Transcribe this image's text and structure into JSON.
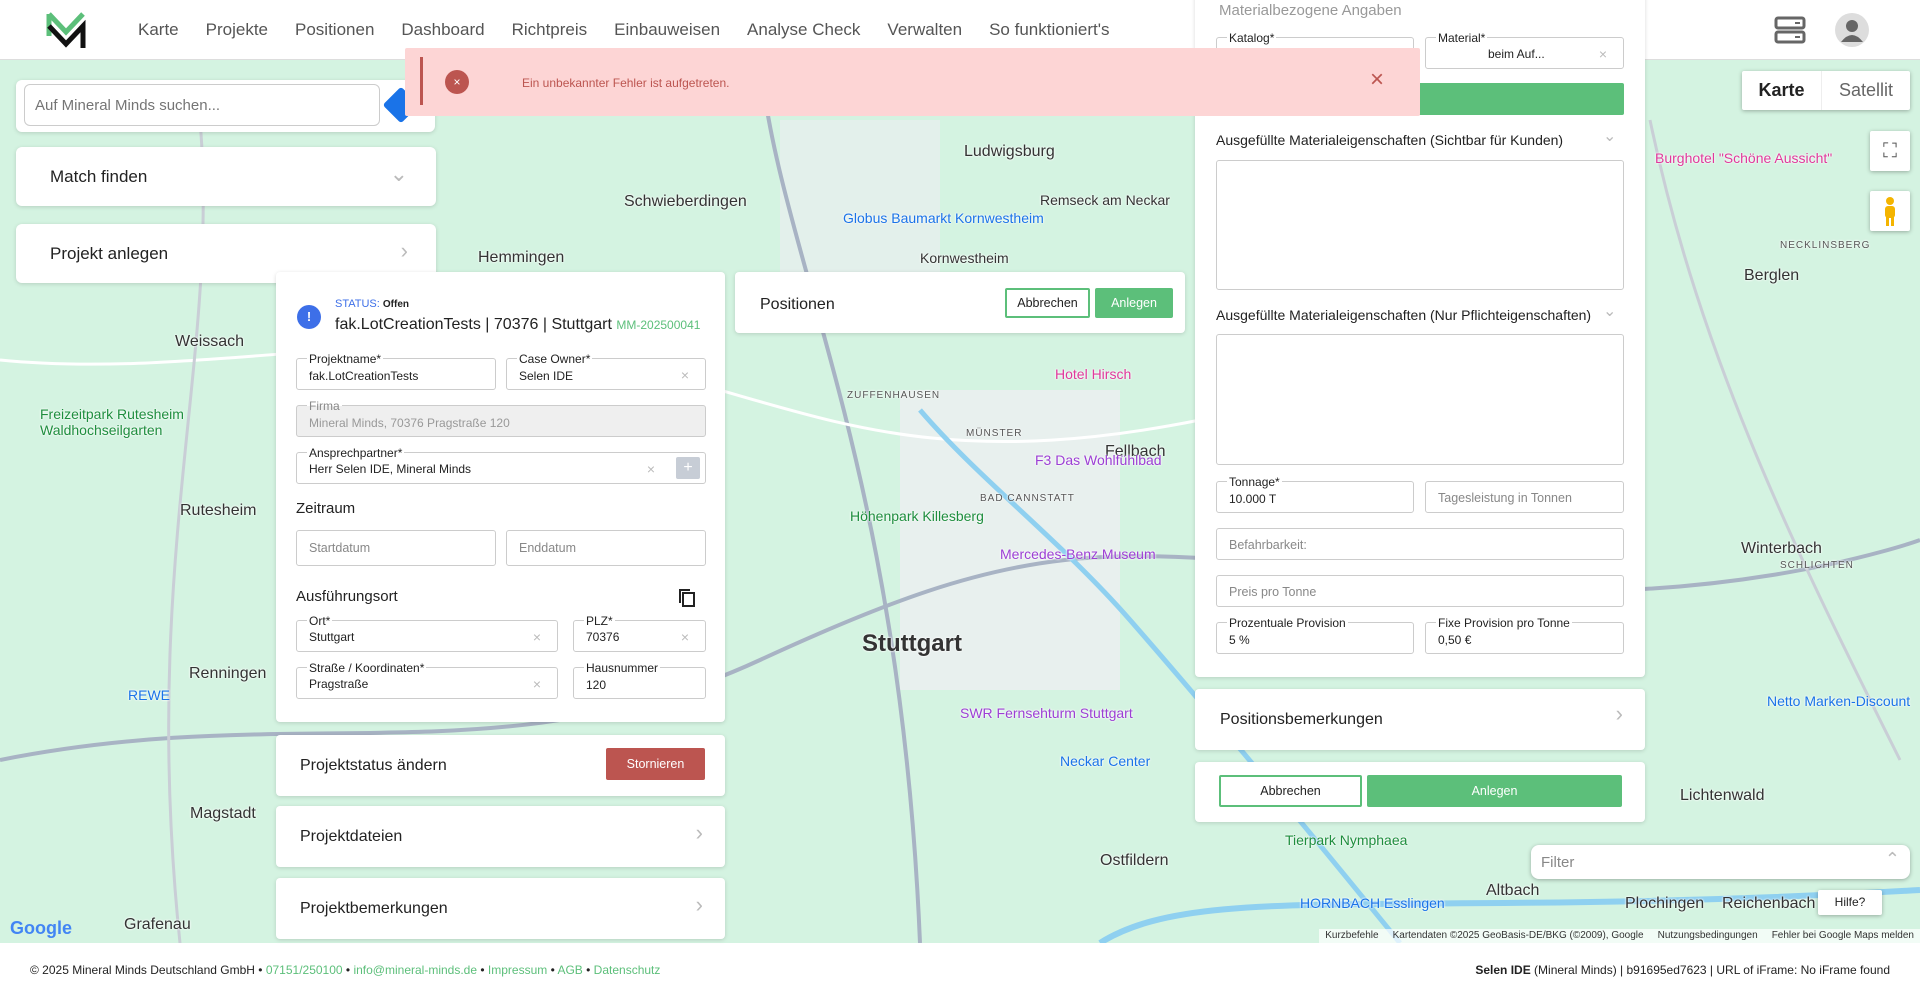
{
  "header": {
    "logo": "MM",
    "nav": [
      "Karte",
      "Projekte",
      "Positionen",
      "Dashboard",
      "Richtpreis",
      "Einbauweisen",
      "Analyse Check",
      "Verwalten",
      "So funktioniert's"
    ],
    "icons": [
      "server-icon",
      "avatar-icon"
    ]
  },
  "error": {
    "message": "Ein unbekannter Fehler ist aufgetreten.",
    "icon": "error-circle-icon",
    "close": "×"
  },
  "search": {
    "placeholder": "Auf Mineral Minds suchen..."
  },
  "left": {
    "match": "Match finden",
    "create": "Projekt anlegen"
  },
  "project": {
    "status_label": "STATUS:",
    "status": "Offen",
    "title": "fak.LotCreationTests | 70376 | Stuttgart",
    "code": "MM-202500041",
    "projektname_label": "Projektname*",
    "projektname": "fak.LotCreationTests",
    "owner_label": "Case Owner*",
    "owner": "Selen IDE",
    "firma_label": "Firma",
    "firma": "Mineral Minds, 70376 Pragstraße 120",
    "ansprech_label": "Ansprechpartner*",
    "ansprech": "Herr Selen IDE, Mineral Minds",
    "zeitraum": "Zeitraum",
    "start_ph": "Startdatum",
    "end_ph": "Enddatum",
    "ort_section": "Ausführungsort",
    "ort_label": "Ort*",
    "ort": "Stuttgart",
    "plz_label": "PLZ*",
    "plz": "70376",
    "strasse_label": "Straße / Koordinaten*",
    "strasse": "Pragstraße",
    "hnr_label": "Hausnummer",
    "hnr": "120"
  },
  "status_card": {
    "title": "Projektstatus ändern",
    "button": "Stornieren"
  },
  "files_card": {
    "title": "Projektdateien"
  },
  "remarks_card": {
    "title": "Projektbemerkungen"
  },
  "positions": {
    "title": "Positionen",
    "cancel": "Abbrechen",
    "create": "Anlegen"
  },
  "position_form": {
    "section": "Materialbezogene Angaben",
    "katalog_label": "Katalog*",
    "material_label": "Material*",
    "material": "beim Auf...",
    "props_visible": "Ausgefüllte Materialeigenschaften (Sichtbar für Kunden)",
    "props_required": "Ausgefüllte Materialeigenschaften (Nur Pflichteigenschaften)",
    "tonnage_label": "Tonnage*",
    "tonnage": "10.000 T",
    "tages_ph": "Tagesleistung in Tonnen",
    "befahr_ph": "Befahrbarkeit:",
    "preis_ph": "Preis pro Tonne",
    "prov_label": "Prozentuale Provision",
    "prov": "5 %",
    "fix_label": "Fixe Provision pro Tonne",
    "fix": "0,50 €",
    "remarks": "Positionsbemerkungen",
    "cancel": "Abbrechen",
    "create": "Anlegen"
  },
  "map": {
    "type_map": "Karte",
    "type_sat": "Satellit",
    "filter_ph": "Filter",
    "help": "Hilfe?",
    "google": "Google",
    "attribution": [
      "Kurzbefehle",
      "Kartendaten ©2025 GeoBasis-DE/BKG (©2009), Google",
      "Nutzungsbedingungen",
      "Fehler bei Google Maps melden"
    ],
    "labels": [
      "Ludwigsburg",
      "Schwieberdingen",
      "Hemmingen",
      "Weissach",
      "Remseck am Neckar",
      "Kornwestheim",
      "Rutesheim",
      "Renningen",
      "Stuttgart",
      "Fellbach",
      "Winterbach",
      "Berglen",
      "Ostfildern",
      "Grafenau",
      "Altbach",
      "Plochingen",
      "Reichenbach",
      "Lichtenwald",
      "Magstadt",
      "BAD CANNSTATT",
      "ZUFFENHAUSEN",
      "MÜNSTER",
      "NECKLINSBERG",
      "SCHLICHTEN",
      "Hotel Hirsch",
      "Mercedes-Benz Museum",
      "F3 Das Wohlfühlbad",
      "Burghotel \"Schöne Aussicht\"",
      "Netto Marken-Discount",
      "REWE",
      "Tierpark Nymphaea",
      "Freizeitpark Rutesheim Waldhochseilgarten",
      "Neckar Center",
      "SWR Fernsehturm Stuttgart",
      "HORNBACH Esslingen",
      "Globus Baumarkt Kornwestheim",
      "Höhenpark Killesberg"
    ]
  },
  "footer": {
    "copyright": "© 2025 Mineral Minds Deutschland GmbH",
    "phone": "07151/250100",
    "email": "info@mineral-minds.de",
    "impressum": "Impressum",
    "agb": "AGB",
    "datenschutz": "Datenschutz",
    "sep": " • ",
    "user": "Selen IDE",
    "org": " (Mineral Minds) | b91695ed7623 | URL of iFrame: No iFrame found"
  },
  "colors": {
    "accent": "#5cbf7a",
    "danger": "#bc5550",
    "error_bg": "#fdd5d5",
    "status_blue": "#3d6fe8"
  }
}
